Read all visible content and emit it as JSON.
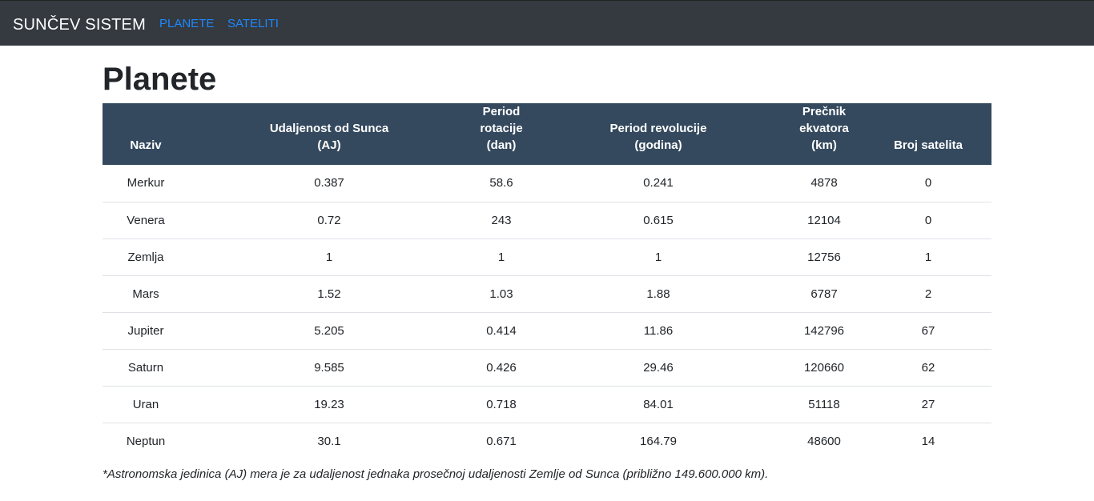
{
  "navbar": {
    "brand": "SUNČEV SISTEM",
    "links": [
      "PLANETE",
      "SATELITI"
    ]
  },
  "page_title": "Planete",
  "table": {
    "headers": [
      {
        "line1": "",
        "line2": "Naziv"
      },
      {
        "line1": "Udaljenost od Sunca",
        "line2": "(AJ)"
      },
      {
        "line1": "Period rotacije",
        "line2": "(dan)"
      },
      {
        "line1": "Period revolucije",
        "line2": "(godina)"
      },
      {
        "line1": "Prečnik ekvatora",
        "line2": "(km)"
      },
      {
        "line1": "",
        "line2": "Broj satelita"
      }
    ],
    "rows": [
      [
        "Merkur",
        "0.387",
        "58.6",
        "0.241",
        "4878",
        "0"
      ],
      [
        "Venera",
        "0.72",
        "243",
        "0.615",
        "12104",
        "0"
      ],
      [
        "Zemlja",
        "1",
        "1",
        "1",
        "12756",
        "1"
      ],
      [
        "Mars",
        "1.52",
        "1.03",
        "1.88",
        "6787",
        "2"
      ],
      [
        "Jupiter",
        "5.205",
        "0.414",
        "11.86",
        "142796",
        "67"
      ],
      [
        "Saturn",
        "9.585",
        "0.426",
        "29.46",
        "120660",
        "62"
      ],
      [
        "Uran",
        "19.23",
        "0.718",
        "84.01",
        "51118",
        "27"
      ],
      [
        "Neptun",
        "30.1",
        "0.671",
        "164.79",
        "48600",
        "14"
      ]
    ]
  },
  "footnote": "*Astronomska jedinica (AJ) mera je za udaljenost jednaka prosečnoj udaljenosti Zemlje od Sunca (približno 149.600.000 km)."
}
